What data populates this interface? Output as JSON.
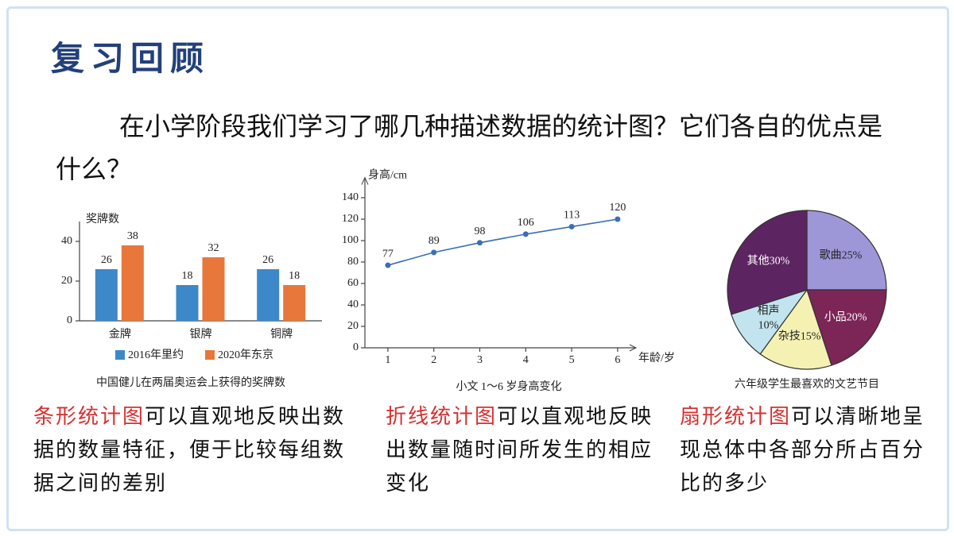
{
  "header": {
    "title": "复习回顾"
  },
  "question": "在小学阶段我们学习了哪几种描述数据的统计图？它们各自的优点是什么？",
  "chart_data": [
    {
      "type": "bar",
      "y_label": "奖牌数",
      "caption": "中国健儿在两届奥运会上获得的奖牌数",
      "categories": [
        "金牌",
        "银牌",
        "铜牌"
      ],
      "series": [
        {
          "name": "2016年里约",
          "color": "#3d88c9",
          "values": [
            26,
            18,
            26
          ]
        },
        {
          "name": "2020年东京",
          "color": "#e8773b",
          "values": [
            38,
            32,
            18
          ]
        }
      ],
      "ylim": [
        0,
        46
      ],
      "yticks": [
        0,
        20,
        40
      ]
    },
    {
      "type": "line",
      "y_label": "身高/cm",
      "x_label": "年龄/岁",
      "caption": "小文 1～6 岁身高变化",
      "x": [
        1,
        2,
        3,
        4,
        5,
        6
      ],
      "values": [
        77,
        89,
        98,
        106,
        113,
        120
      ],
      "color": "#3a6fb5",
      "xlim": [
        0.5,
        6.4
      ],
      "xticks": [
        1,
        2,
        3,
        4,
        5,
        6
      ],
      "ylim": [
        0,
        150
      ],
      "yticks": [
        0,
        20,
        40,
        60,
        80,
        100,
        120,
        140
      ]
    },
    {
      "type": "pie",
      "caption": "六年级学生最喜欢的文艺节目",
      "categories": [
        "歌曲",
        "小品",
        "杂技",
        "相声",
        "其他"
      ],
      "values": [
        25,
        20,
        15,
        10,
        30
      ],
      "value_labels": [
        "25%",
        "20%",
        "15%",
        "10%",
        "30%"
      ],
      "colors": [
        "#9d97d8",
        "#7c2557",
        "#f4f1b3",
        "#c2e4ee",
        "#5d2462"
      ]
    }
  ],
  "notes": [
    {
      "term": "条形统计图",
      "text": "可以直观地反映出数据的数量特征，便于比较每组数据之间的差别"
    },
    {
      "term": "折线统计图",
      "text": "可以直观地反映出数量随时间所发生的相应变化"
    },
    {
      "term": "扇形统计图",
      "text": "可以清晰地呈现总体中各部分所占百分比的多少"
    }
  ]
}
